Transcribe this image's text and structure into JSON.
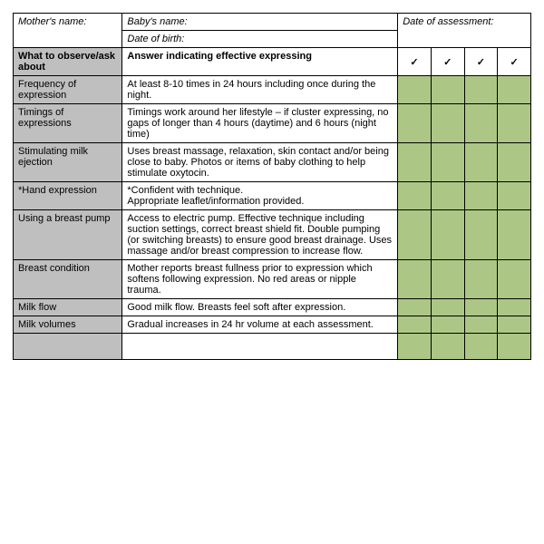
{
  "header": {
    "mother_label": "Mother's name:",
    "baby_label": "Baby's name:",
    "dob_label": "Date of birth:",
    "date_label": "Date of assessment:"
  },
  "colhead": {
    "left": "What to observe/ask about",
    "mid": "Answer indicating effective expressing",
    "tick": "✓"
  },
  "rows": [
    {
      "topic": "Frequency of expression",
      "answer": "At least 8-10 times in 24 hours including once during the night."
    },
    {
      "topic": "Timings of expressions",
      "answer": "Timings work around her lifestyle – if cluster expressing, no gaps of longer than 4 hours (daytime) and 6 hours (night time)"
    },
    {
      "topic": "Stimulating milk ejection",
      "answer": "Uses breast massage, relaxation, skin contact and/or being close to baby. Photos or items of baby clothing to help stimulate oxytocin."
    },
    {
      "topic": "*Hand expression",
      "answer": "*Confident with technique.\nAppropriate leaflet/information provided."
    },
    {
      "topic": "Using a breast pump",
      "answer": "Access to electric pump. Effective technique including suction settings, correct breast shield fit. Double pumping (or switching breasts) to ensure good breast drainage. Uses massage and/or breast compression to increase flow."
    },
    {
      "topic": "Breast condition",
      "answer": "Mother reports breast fullness prior to expression which softens following expression. No red areas or nipple trauma."
    },
    {
      "topic": "Milk flow",
      "answer": "Good milk flow. Breasts feel soft after expression."
    },
    {
      "topic": "Milk volumes",
      "answer": "Gradual increases in 24 hr volume at each assessment."
    }
  ],
  "style": {
    "grey": "#bfbfbf",
    "green": "#acc785",
    "border": "#000000",
    "font_size": 11
  }
}
